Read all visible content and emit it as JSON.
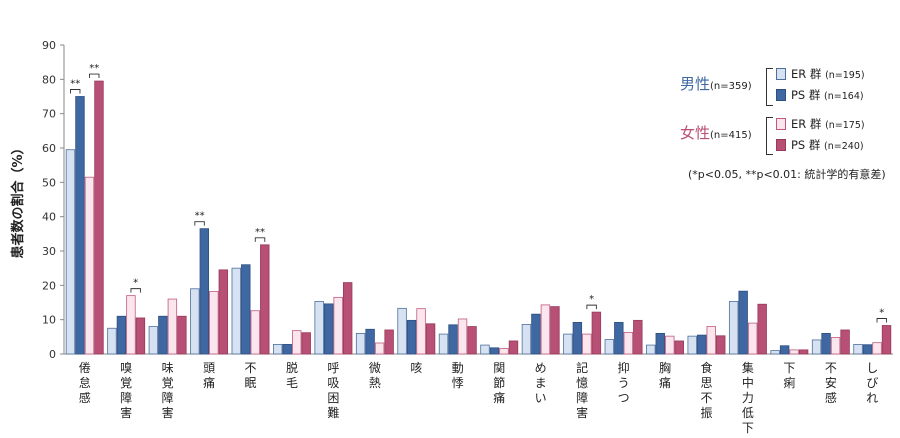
{
  "chart_data": {
    "type": "bar",
    "ylabel": "患者数の割合（%）",
    "ylim": [
      0,
      90
    ],
    "yticks": [
      0,
      10,
      20,
      30,
      40,
      50,
      60,
      70,
      80,
      90
    ],
    "grid": false,
    "legend_position": "top-right",
    "categories": [
      "倦怠感",
      "嗅覚障害",
      "味覚障害",
      "頭痛",
      "不眠",
      "脱毛",
      "呼吸困難",
      "微熱",
      "咳",
      "動悸",
      "関節痛",
      "めまい",
      "記憶障害",
      "抑うつ",
      "胸痛",
      "食思不振",
      "集中力低下",
      "下痢",
      "不安感",
      "しびれ"
    ],
    "series": [
      {
        "name": "男性 ER 群",
        "values": [
          59.5,
          7.5,
          8.0,
          19.0,
          25.0,
          2.8,
          15.3,
          6.0,
          13.3,
          5.8,
          2.6,
          8.6,
          5.8,
          4.2,
          2.6,
          5.2,
          15.3,
          1.0,
          4.1,
          2.8
        ],
        "fill": "#d6e2f2",
        "stroke": "#4e6f9c"
      },
      {
        "name": "男性 PS 群",
        "values": [
          75.0,
          11.0,
          11.0,
          36.5,
          26.0,
          2.8,
          14.6,
          7.2,
          9.8,
          8.5,
          1.8,
          11.6,
          9.2,
          9.2,
          6.0,
          5.5,
          18.3,
          2.4,
          6.0,
          2.7
        ],
        "fill": "#3f68a2",
        "stroke": "#2d4f80"
      },
      {
        "name": "女性 ER 群",
        "values": [
          51.5,
          17.0,
          16.0,
          18.2,
          12.6,
          6.8,
          16.5,
          3.2,
          13.2,
          10.2,
          1.6,
          14.3,
          5.8,
          6.3,
          5.2,
          8.0,
          9.0,
          1.2,
          4.8,
          3.3
        ],
        "fill": "#fbe6ee",
        "stroke": "#c05a7d"
      },
      {
        "name": "女性 PS 群",
        "values": [
          79.5,
          10.5,
          11.0,
          24.5,
          31.8,
          6.2,
          20.8,
          7.0,
          8.8,
          8.0,
          3.8,
          13.8,
          12.2,
          9.8,
          3.8,
          5.3,
          14.5,
          1.2,
          7.0,
          8.3
        ],
        "fill": "#b84f74",
        "stroke": "#973a5c"
      }
    ],
    "significance": [
      {
        "category": 0,
        "group": "男性",
        "mark": "**"
      },
      {
        "category": 0,
        "group": "女性",
        "mark": "**"
      },
      {
        "category": 1,
        "group": "女性",
        "mark": "*"
      },
      {
        "category": 3,
        "group": "男性",
        "mark": "**"
      },
      {
        "category": 4,
        "group": "女性",
        "mark": "**"
      },
      {
        "category": 12,
        "group": "女性",
        "mark": "*"
      },
      {
        "category": 19,
        "group": "女性",
        "mark": "*"
      }
    ]
  },
  "legend": {
    "male": {
      "title": "男性",
      "n_label": "(n=359)",
      "items": [
        {
          "label": "ER 群",
          "n_label": "(n=195)"
        },
        {
          "label": "PS 群",
          "n_label": "(n=164)"
        }
      ]
    },
    "female": {
      "title": "女性",
      "n_label": "(n=415)",
      "items": [
        {
          "label": "ER 群",
          "n_label": "(n=175)"
        },
        {
          "label": "PS 群",
          "n_label": "(n=240)"
        }
      ]
    },
    "note": "(*p<0.05, **p<0.01: 統計学的有意差)",
    "colors": {
      "male_title": "#3f68a2",
      "female_title": "#b84f74"
    }
  }
}
